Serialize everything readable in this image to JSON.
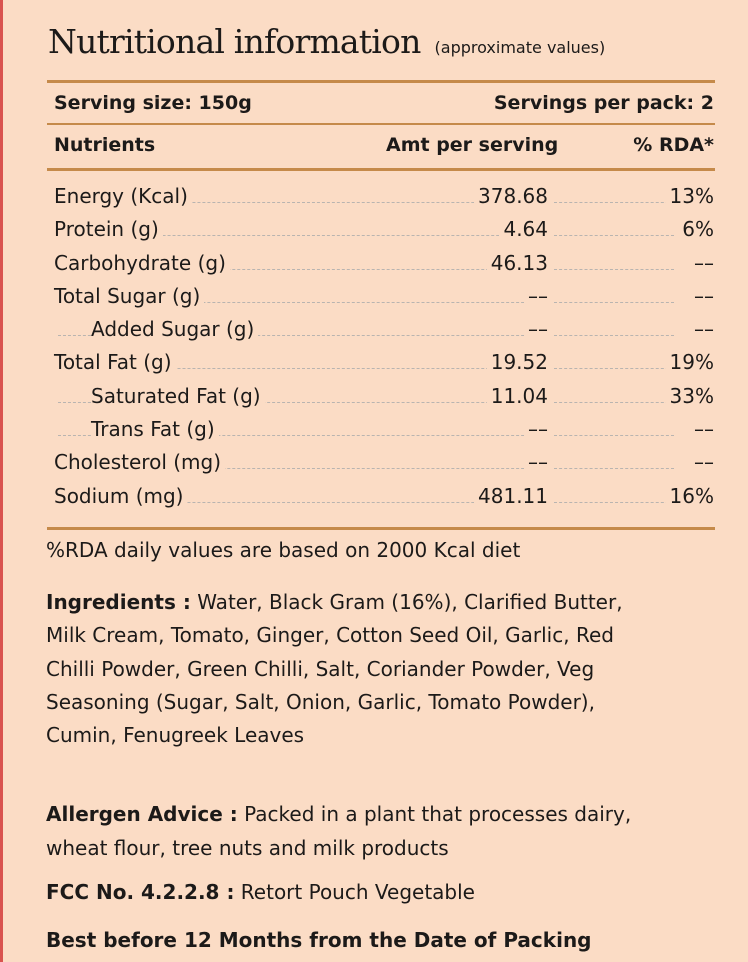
{
  "title": "Nutritional information",
  "subtitle": "(approximate values)",
  "serving_size": "Serving size: 150g",
  "servings_per_pack": "Servings per pack: 2",
  "columns": {
    "nutrients": "Nutrients",
    "amount": "Amt per serving",
    "rda": "% RDA*"
  },
  "nutrients": [
    {
      "name": "Energy (Kcal)",
      "amount": "378.68",
      "rda": "13%"
    },
    {
      "name": "Protein (g)",
      "amount": "4.64",
      "rda": "6%"
    },
    {
      "name": "Carbohydrate (g)",
      "amount": "46.13",
      "rda": "––"
    },
    {
      "name": "Total Sugar (g)",
      "amount": "––",
      "rda": "––"
    },
    {
      "name": "Added Sugar (g)",
      "amount": "––",
      "rda": "––"
    },
    {
      "name": "Total Fat (g)",
      "amount": "19.52",
      "rda": "19%"
    },
    {
      "name": "Saturated Fat (g)",
      "amount": "11.04",
      "rda": "33%"
    },
    {
      "name": "Trans Fat (g)",
      "amount": "––",
      "rda": "––"
    },
    {
      "name": "Cholesterol (mg)",
      "amount": "––",
      "rda": "––"
    },
    {
      "name": "Sodium (mg)",
      "amount": "481.11",
      "rda": "16%"
    }
  ],
  "rda_note": "%RDA daily values are based on 2000 Kcal diet",
  "ingredients": {
    "label": "Ingredients :",
    "text": "Water, Black Gram (16%), Clarified Butter, Milk Cream, Tomato, Ginger, Cotton Seed Oil, Garlic, Red Chilli Powder, Green Chilli, Salt, Coriander Powder, Veg Seasoning (Sugar, Salt, Onion, Garlic, Tomato Powder), Cumin, Fenugreek Leaves"
  },
  "allergen": {
    "label": "Allergen Advice :",
    "text": "Packed in a plant that processes dairy, wheat flour, tree nuts and milk products"
  },
  "fcc": {
    "label": "FCC No. 4.2.2.8 :",
    "text": "Retort Pouch Vegetable"
  },
  "best_before": "Best before 12 Months from the Date of Packing",
  "colors": {
    "background": "#fbdcc5",
    "rule": "#c58a4a",
    "edge": "#d9534f"
  }
}
